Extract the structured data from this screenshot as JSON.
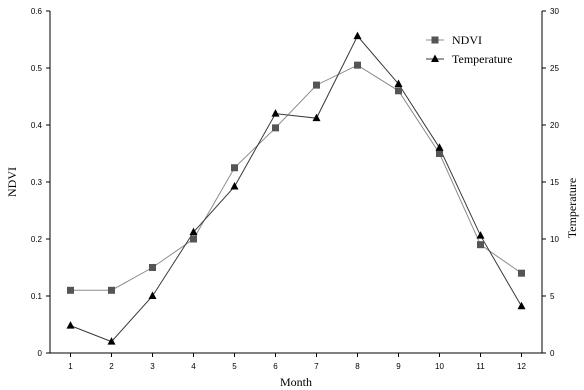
{
  "chart_data": {
    "type": "line",
    "title": "",
    "xlabel": "Month",
    "ylabel": "NDVI",
    "y2label": "Temperature",
    "x": [
      1,
      2,
      3,
      4,
      5,
      6,
      7,
      8,
      9,
      10,
      11,
      12
    ],
    "xlim": [
      0.5,
      12.5
    ],
    "ylim": [
      0,
      0.6
    ],
    "y2lim": [
      0,
      30
    ],
    "yticks": [
      "0",
      "0.1",
      "0.2",
      "0.3",
      "0.4",
      "0.5",
      "0.6"
    ],
    "y2ticks": [
      "0",
      "5",
      "10",
      "15",
      "20",
      "25",
      "30"
    ],
    "xticks": [
      "1",
      "2",
      "3",
      "4",
      "5",
      "6",
      "7",
      "8",
      "9",
      "10",
      "11",
      "12"
    ],
    "grid": false,
    "legend": "top-right",
    "series": [
      {
        "name": "NDVI",
        "axis": "left",
        "marker": "square",
        "color": "#555555",
        "values": [
          0.11,
          0.11,
          0.15,
          0.2,
          0.325,
          0.395,
          0.47,
          0.505,
          0.46,
          0.35,
          0.19,
          0.14
        ]
      },
      {
        "name": "Temperature",
        "axis": "right",
        "marker": "triangle",
        "color": "#000000",
        "values": [
          2.4,
          1.0,
          5.0,
          10.6,
          14.6,
          21.0,
          20.6,
          27.8,
          23.6,
          18.0,
          10.3,
          4.1
        ]
      }
    ]
  }
}
